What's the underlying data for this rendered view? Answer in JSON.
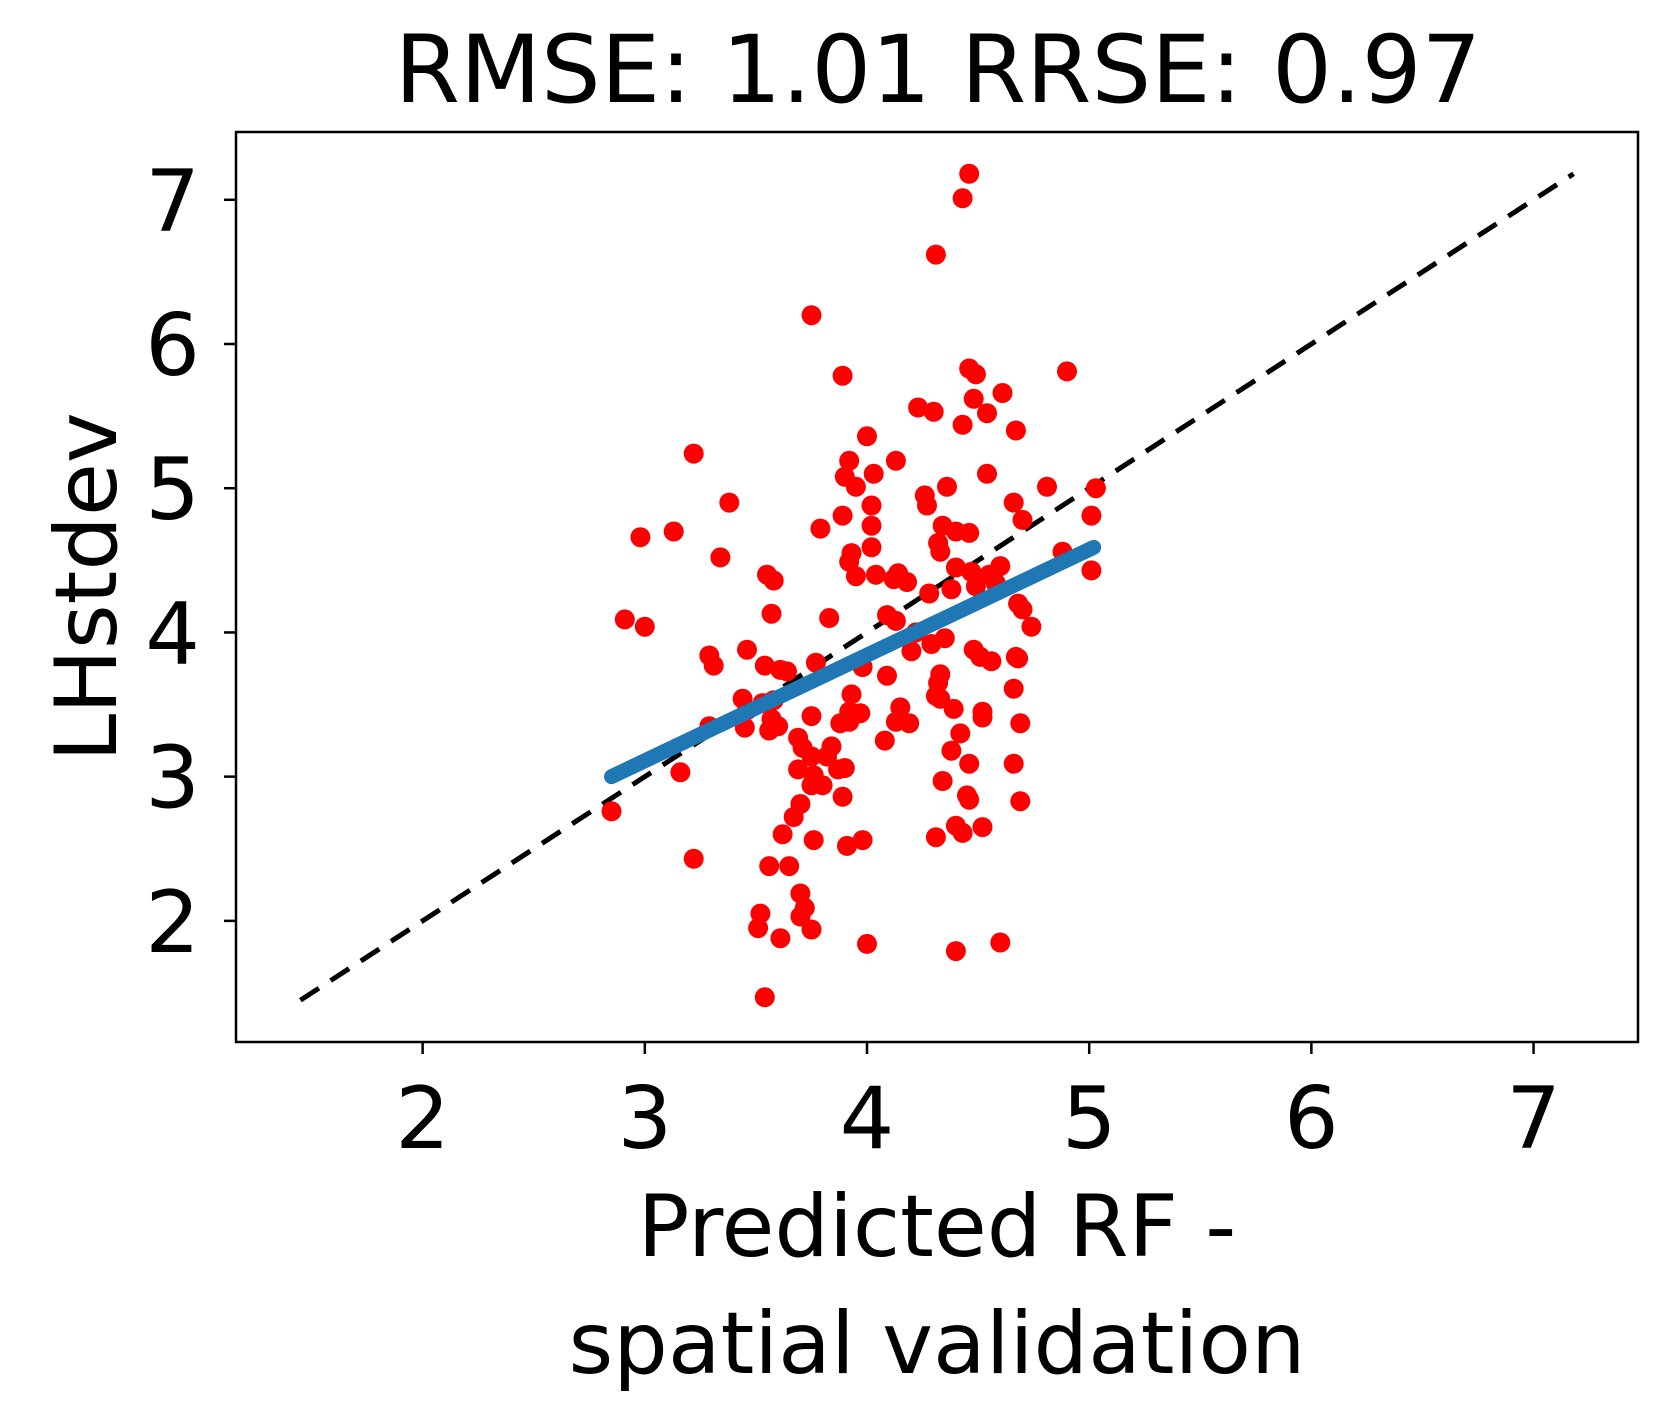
{
  "chart_data": {
    "type": "scatter",
    "title": "RMSE: 1.01 RRSE: 0.97",
    "xlabel_lines": [
      "Predicted RF -",
      "spatial validation"
    ],
    "ylabel": "LHstdev",
    "xlim": [
      1.16,
      7.47
    ],
    "ylim": [
      1.16,
      7.47
    ],
    "xticks": [
      2,
      3,
      4,
      5,
      6,
      7
    ],
    "yticks": [
      2,
      3,
      4,
      5,
      6,
      7
    ],
    "grid": false,
    "colors": {
      "points": "#ff0000",
      "fit": "#1f77b4",
      "identity": "#000000"
    },
    "identity_line": {
      "x": [
        1.45,
        7.18
      ],
      "y": [
        1.45,
        7.18
      ],
      "style": "dashed"
    },
    "fit_line": {
      "x": [
        2.85,
        5.02
      ],
      "y": [
        3.0,
        4.59
      ]
    },
    "points": [
      [
        4.46,
        7.18
      ],
      [
        4.43,
        7.01
      ],
      [
        4.31,
        6.62
      ],
      [
        3.75,
        6.2
      ],
      [
        3.89,
        5.78
      ],
      [
        4.46,
        5.83
      ],
      [
        4.49,
        5.79
      ],
      [
        4.9,
        5.81
      ],
      [
        4.61,
        5.66
      ],
      [
        4.48,
        5.62
      ],
      [
        4.23,
        5.56
      ],
      [
        4.3,
        5.53
      ],
      [
        4.54,
        5.52
      ],
      [
        4.43,
        5.44
      ],
      [
        4.67,
        5.4
      ],
      [
        4.0,
        5.36
      ],
      [
        3.22,
        5.24
      ],
      [
        4.13,
        5.19
      ],
      [
        3.92,
        5.19
      ],
      [
        4.03,
        5.1
      ],
      [
        3.9,
        5.08
      ],
      [
        4.54,
        5.1
      ],
      [
        3.95,
        5.01
      ],
      [
        4.36,
        5.01
      ],
      [
        4.81,
        5.01
      ],
      [
        5.03,
        5.0
      ],
      [
        4.26,
        4.95
      ],
      [
        3.38,
        4.9
      ],
      [
        4.02,
        4.88
      ],
      [
        4.27,
        4.88
      ],
      [
        4.66,
        4.9
      ],
      [
        4.7,
        4.78
      ],
      [
        3.89,
        4.81
      ],
      [
        5.01,
        4.81
      ],
      [
        4.02,
        4.74
      ],
      [
        3.79,
        4.72
      ],
      [
        3.13,
        4.7
      ],
      [
        4.34,
        4.74
      ],
      [
        4.46,
        4.69
      ],
      [
        4.4,
        4.7
      ],
      [
        2.98,
        4.66
      ],
      [
        4.32,
        4.62
      ],
      [
        3.93,
        4.55
      ],
      [
        4.02,
        4.59
      ],
      [
        4.33,
        4.56
      ],
      [
        3.92,
        4.49
      ],
      [
        3.34,
        4.52
      ],
      [
        4.4,
        4.45
      ],
      [
        4.47,
        4.42
      ],
      [
        4.88,
        4.56
      ],
      [
        3.95,
        4.39
      ],
      [
        3.55,
        4.4
      ],
      [
        3.58,
        4.36
      ],
      [
        4.04,
        4.4
      ],
      [
        4.14,
        4.41
      ],
      [
        4.18,
        4.35
      ],
      [
        4.12,
        4.37
      ],
      [
        4.38,
        4.3
      ],
      [
        4.49,
        4.32
      ],
      [
        4.58,
        4.34
      ],
      [
        5.01,
        4.43
      ],
      [
        4.6,
        4.46
      ],
      [
        4.55,
        4.4
      ],
      [
        4.28,
        4.27
      ],
      [
        4.68,
        4.2
      ],
      [
        4.7,
        4.16
      ],
      [
        4.74,
        4.04
      ],
      [
        2.91,
        4.09
      ],
      [
        3.0,
        4.04
      ],
      [
        3.57,
        4.13
      ],
      [
        3.83,
        4.1
      ],
      [
        4.09,
        4.12
      ],
      [
        4.13,
        4.08
      ],
      [
        4.22,
        4.0
      ],
      [
        4.35,
        3.96
      ],
      [
        4.29,
        3.92
      ],
      [
        4.48,
        3.88
      ],
      [
        4.51,
        3.83
      ],
      [
        4.56,
        3.8
      ],
      [
        4.67,
        3.83
      ],
      [
        4.68,
        3.82
      ],
      [
        3.29,
        3.84
      ],
      [
        3.31,
        3.77
      ],
      [
        3.46,
        3.88
      ],
      [
        3.54,
        3.77
      ],
      [
        3.61,
        3.74
      ],
      [
        3.64,
        3.73
      ],
      [
        3.77,
        3.79
      ],
      [
        3.98,
        3.76
      ],
      [
        4.2,
        3.87
      ],
      [
        4.09,
        3.7
      ],
      [
        4.33,
        3.71
      ],
      [
        4.32,
        3.65
      ],
      [
        4.66,
        3.61
      ],
      [
        3.58,
        3.53
      ],
      [
        3.44,
        3.54
      ],
      [
        3.53,
        3.51
      ],
      [
        3.46,
        3.46
      ],
      [
        3.57,
        3.4
      ],
      [
        3.75,
        3.42
      ],
      [
        3.92,
        3.45
      ],
      [
        3.97,
        3.44
      ],
      [
        3.93,
        3.57
      ],
      [
        4.15,
        3.48
      ],
      [
        4.33,
        3.54
      ],
      [
        4.39,
        3.47
      ],
      [
        4.52,
        3.45
      ],
      [
        4.52,
        3.41
      ],
      [
        4.31,
        3.56
      ],
      [
        3.29,
        3.35
      ],
      [
        3.45,
        3.34
      ],
      [
        3.56,
        3.32
      ],
      [
        3.6,
        3.35
      ],
      [
        3.88,
        3.37
      ],
      [
        3.92,
        3.38
      ],
      [
        4.13,
        3.38
      ],
      [
        4.19,
        3.37
      ],
      [
        4.69,
        3.37
      ],
      [
        4.42,
        3.3
      ],
      [
        3.69,
        3.27
      ],
      [
        3.71,
        3.2
      ],
      [
        3.84,
        3.21
      ],
      [
        4.08,
        3.25
      ],
      [
        3.75,
        3.14
      ],
      [
        3.82,
        3.14
      ],
      [
        4.38,
        3.18
      ],
      [
        4.46,
        3.09
      ],
      [
        4.66,
        3.09
      ],
      [
        3.16,
        3.03
      ],
      [
        3.69,
        3.05
      ],
      [
        3.76,
        3.01
      ],
      [
        3.87,
        3.05
      ],
      [
        3.9,
        3.06
      ],
      [
        3.75,
        2.94
      ],
      [
        3.8,
        2.94
      ],
      [
        4.34,
        2.97
      ],
      [
        3.89,
        2.86
      ],
      [
        4.45,
        2.87
      ],
      [
        4.46,
        2.84
      ],
      [
        4.69,
        2.83
      ],
      [
        3.7,
        2.81
      ],
      [
        3.67,
        2.72
      ],
      [
        2.85,
        2.76
      ],
      [
        4.4,
        2.66
      ],
      [
        4.52,
        2.65
      ],
      [
        4.43,
        2.61
      ],
      [
        3.62,
        2.6
      ],
      [
        3.76,
        2.56
      ],
      [
        3.98,
        2.56
      ],
      [
        3.91,
        2.52
      ],
      [
        4.31,
        2.58
      ],
      [
        3.22,
        2.43
      ],
      [
        3.56,
        2.38
      ],
      [
        3.65,
        2.38
      ],
      [
        3.7,
        2.19
      ],
      [
        3.72,
        2.09
      ],
      [
        3.7,
        2.03
      ],
      [
        3.52,
        2.05
      ],
      [
        3.51,
        1.95
      ],
      [
        3.75,
        1.94
      ],
      [
        3.61,
        1.88
      ],
      [
        4.0,
        1.84
      ],
      [
        4.4,
        1.79
      ],
      [
        4.6,
        1.85
      ],
      [
        3.54,
        1.47
      ]
    ]
  }
}
